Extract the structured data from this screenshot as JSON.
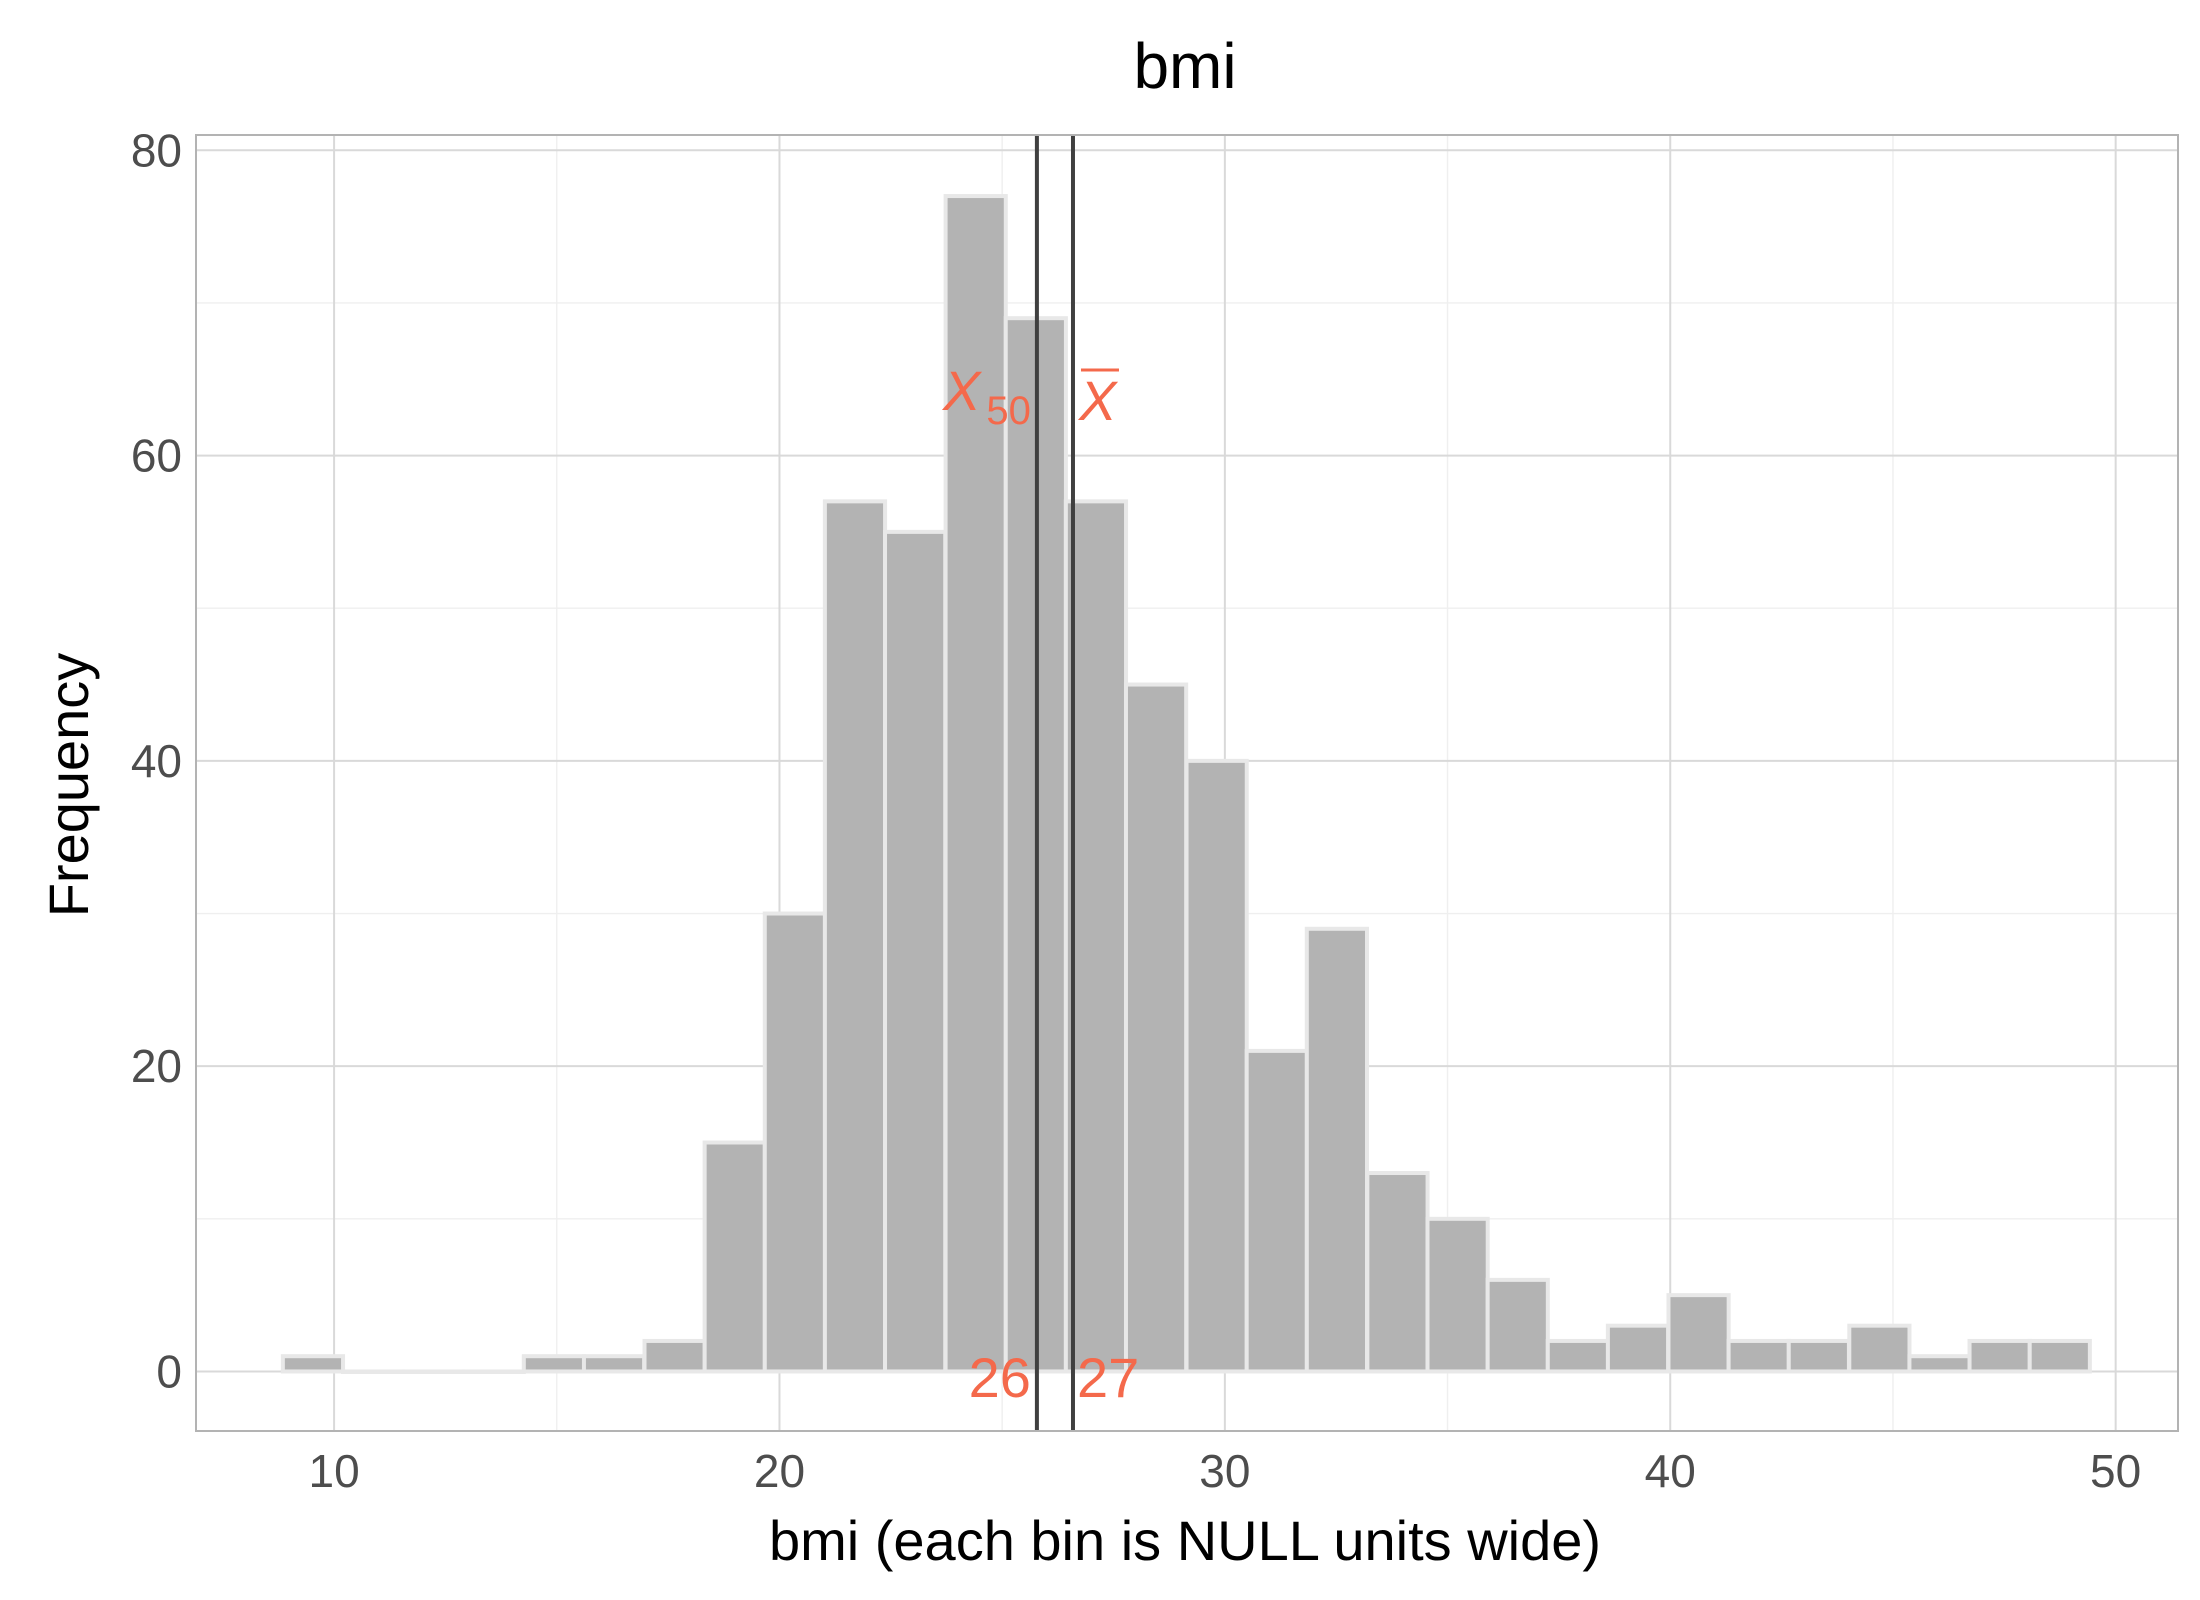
{
  "chart_data": {
    "type": "bar",
    "title": "bmi",
    "xlabel": "bmi (each bin is NULL units wide)",
    "ylabel": "Frequency",
    "xlim": [
      6.9,
      51.4
    ],
    "ylim": [
      -3.9,
      81
    ],
    "x_ticks": [
      10,
      20,
      30,
      40,
      50
    ],
    "y_ticks": [
      0,
      20,
      40,
      60,
      80
    ],
    "bin_width": 1.3514,
    "bins": [
      {
        "x0": 8.85,
        "count": 1
      },
      {
        "x0": 10.2,
        "count": 0
      },
      {
        "x0": 11.56,
        "count": 0
      },
      {
        "x0": 12.91,
        "count": 0
      },
      {
        "x0": 14.26,
        "count": 1
      },
      {
        "x0": 15.61,
        "count": 1
      },
      {
        "x0": 16.97,
        "count": 2
      },
      {
        "x0": 18.32,
        "count": 15
      },
      {
        "x0": 19.67,
        "count": 30
      },
      {
        "x0": 21.02,
        "count": 57
      },
      {
        "x0": 22.37,
        "count": 55
      },
      {
        "x0": 23.73,
        "count": 77
      },
      {
        "x0": 25.08,
        "count": 69
      },
      {
        "x0": 26.43,
        "count": 57
      },
      {
        "x0": 27.78,
        "count": 45
      },
      {
        "x0": 29.14,
        "count": 40
      },
      {
        "x0": 30.49,
        "count": 21
      },
      {
        "x0": 31.84,
        "count": 29
      },
      {
        "x0": 33.2,
        "count": 13
      },
      {
        "x0": 34.55,
        "count": 10
      },
      {
        "x0": 35.9,
        "count": 6
      },
      {
        "x0": 37.25,
        "count": 2
      },
      {
        "x0": 38.6,
        "count": 3
      },
      {
        "x0": 39.96,
        "count": 5
      },
      {
        "x0": 41.31,
        "count": 2
      },
      {
        "x0": 42.66,
        "count": 2
      },
      {
        "x0": 44.02,
        "count": 3
      },
      {
        "x0": 45.37,
        "count": 1
      },
      {
        "x0": 46.72,
        "count": 2
      },
      {
        "x0": 48.07,
        "count": 2
      }
    ],
    "reference_lines": [
      {
        "x": 25.78,
        "label_main": "X",
        "label_sub": "50",
        "value_label": "26"
      },
      {
        "x": 26.59,
        "label_main": "X",
        "value_label": "27"
      }
    ],
    "colors": {
      "bar_fill": "#b3b3b3",
      "bar_outline": "#e8e8e8",
      "reference_line": "#404040",
      "annotation": "#f4694b"
    },
    "grid": true,
    "legend": "none"
  }
}
